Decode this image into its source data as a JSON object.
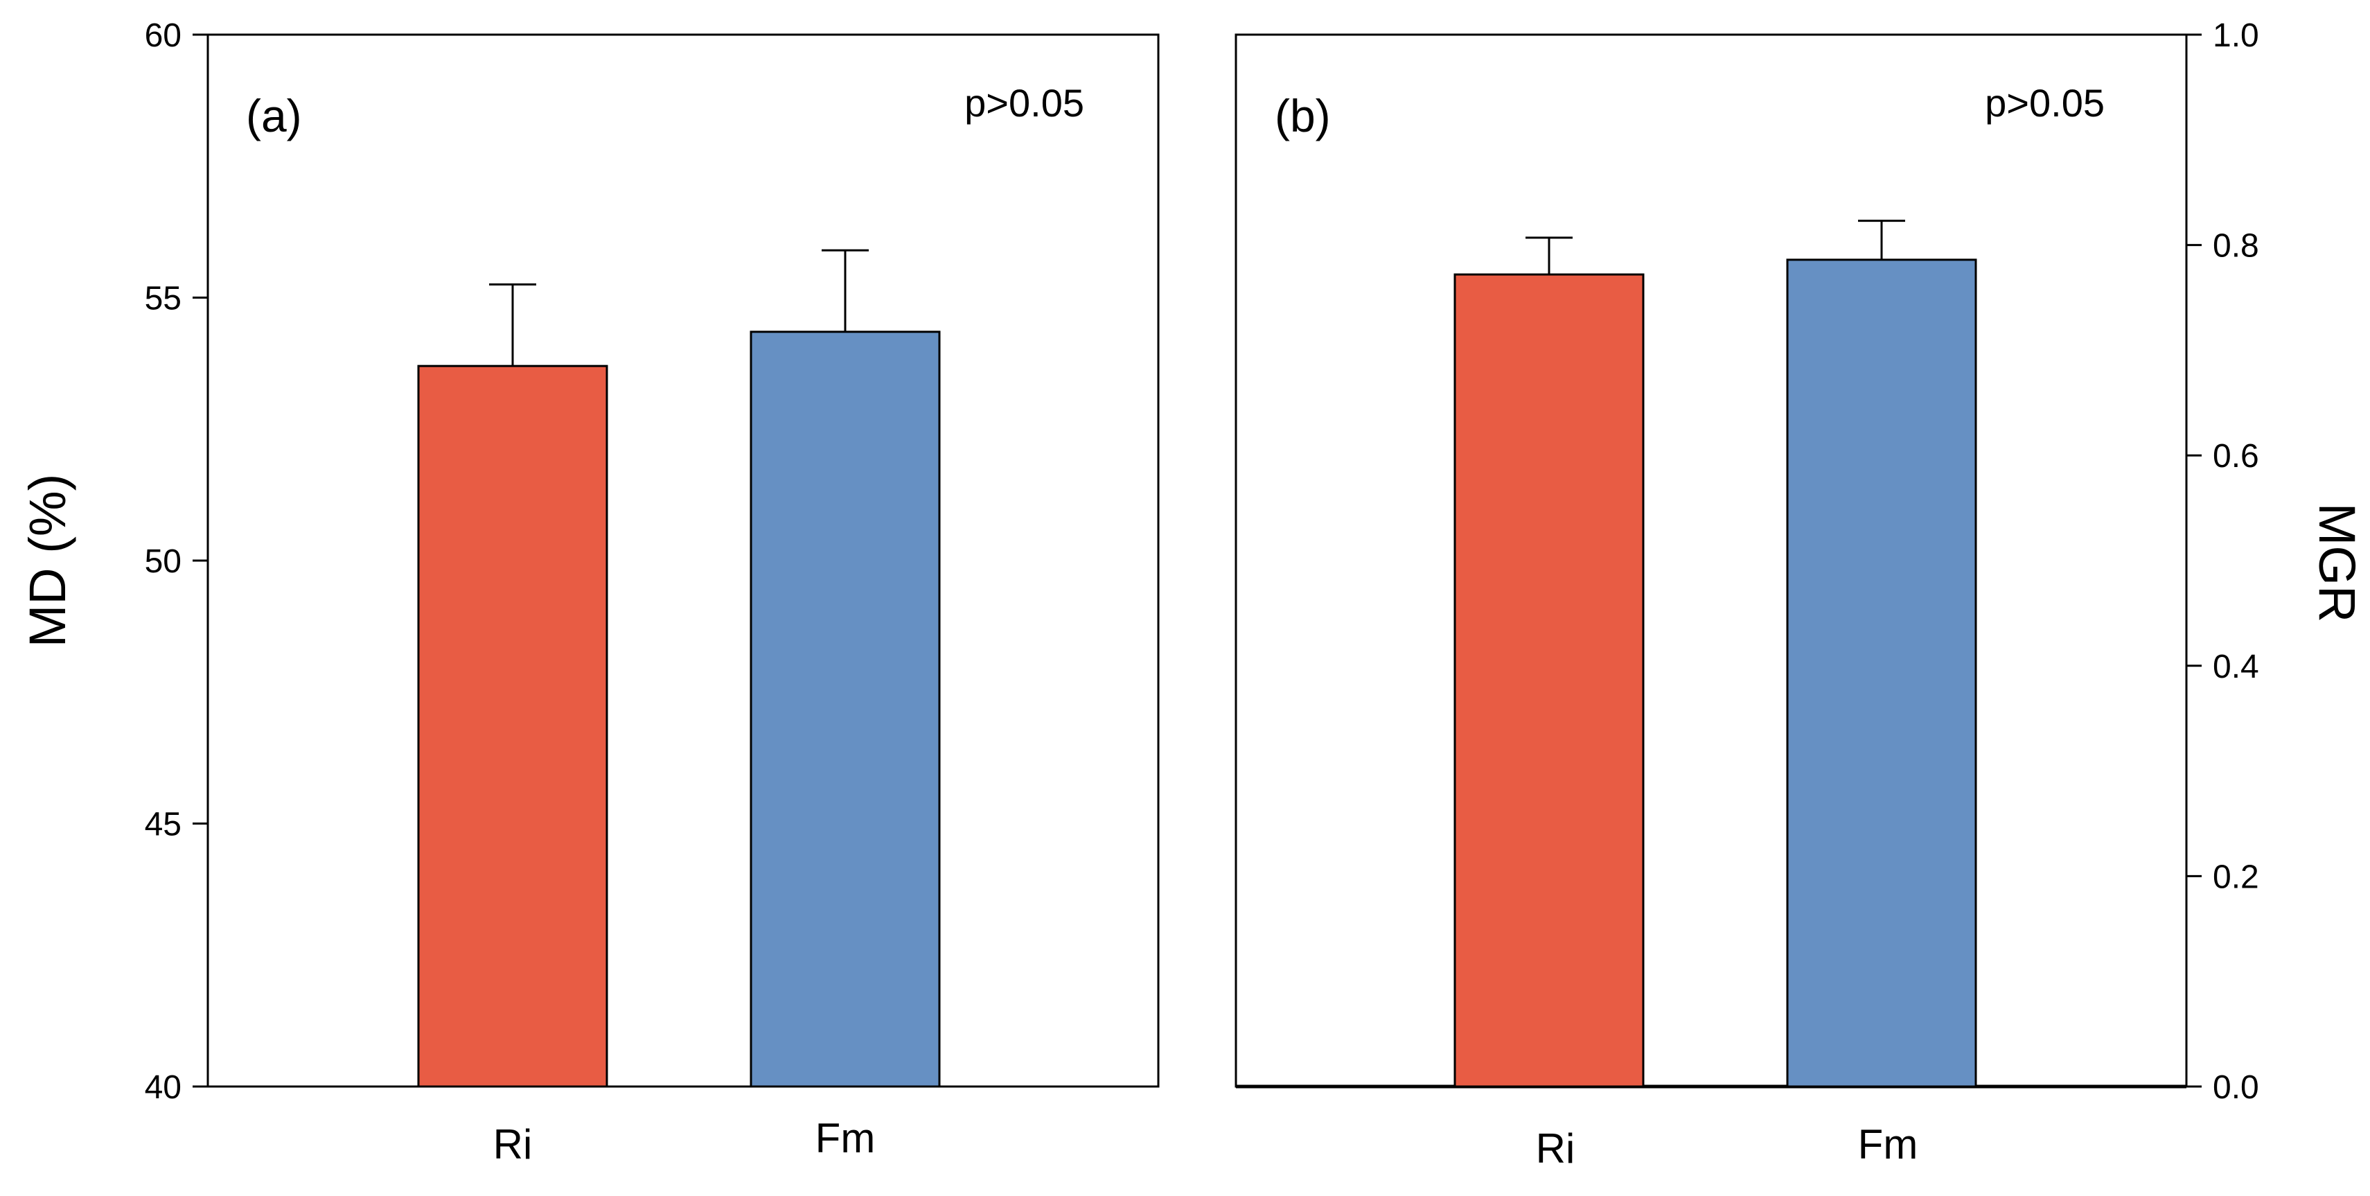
{
  "chart_data": [
    {
      "panel_label": "(a)",
      "type": "bar",
      "categories": [
        "Ri",
        "Fm"
      ],
      "values": [
        53.7,
        54.35
      ],
      "errors": [
        1.55,
        1.55
      ],
      "colors": [
        "#e85c44",
        "#6690c3"
      ],
      "ylabel": "MD (%)",
      "ylim": [
        40,
        60
      ],
      "yticks": [
        40,
        45,
        50,
        55,
        60
      ],
      "ytick_labels": [
        "40",
        "45",
        "50",
        "55",
        "60"
      ],
      "axis_side": "left",
      "annotation": "p>0.05"
    },
    {
      "panel_label": "(b)",
      "type": "bar",
      "categories": [
        "Ri",
        "Fm"
      ],
      "values": [
        0.772,
        0.786
      ],
      "errors": [
        0.035,
        0.037
      ],
      "colors": [
        "#e85c44",
        "#6690c3"
      ],
      "ylabel": "MGR",
      "ylim": [
        0.0,
        1.0
      ],
      "yticks": [
        0.0,
        0.2,
        0.4,
        0.6,
        0.8,
        1.0
      ],
      "ytick_labels": [
        "0.0",
        "0.2",
        "0.4",
        "0.6",
        "0.8",
        "1.0"
      ],
      "axis_side": "right",
      "annotation": "p>0.05"
    }
  ]
}
